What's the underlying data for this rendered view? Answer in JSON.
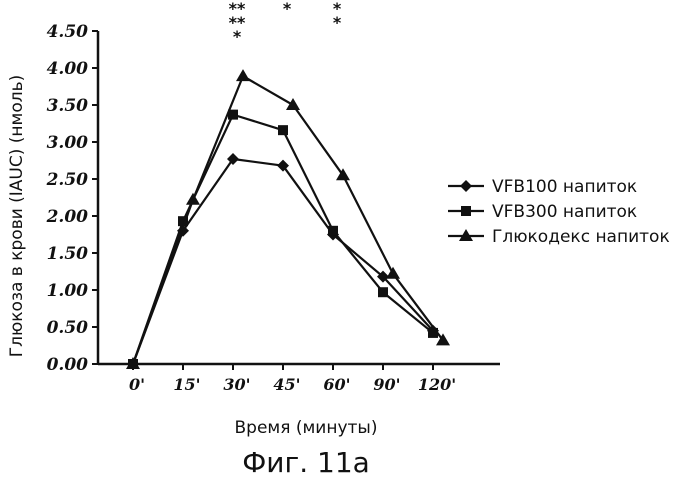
{
  "chart_data": {
    "type": "line",
    "caption": "Фиг. 11а",
    "xlabel": "Время (минуты)",
    "ylabel": "Глюкоза в крови (IAUC) (нмоль)",
    "ylim": [
      0,
      4.5
    ],
    "yticks": [
      "0.00",
      "0.50",
      "1.00",
      "1.50",
      "2.00",
      "2.50",
      "3.00",
      "3.50",
      "4.00",
      "4.50"
    ],
    "categories": [
      "0'",
      "15'",
      "30'",
      "45'",
      "60'",
      "90'",
      "120'"
    ],
    "legend_position": "right",
    "series": [
      {
        "name": "VFB100 напиток",
        "marker": "diamond",
        "x": [
          0,
          1,
          2,
          3,
          4,
          5,
          6
        ],
        "values": [
          0,
          1.8,
          2.77,
          2.68,
          1.75,
          1.18,
          0.45
        ]
      },
      {
        "name": "VFB300 напиток",
        "marker": "square",
        "x": [
          0,
          1,
          2,
          3,
          4,
          5,
          6
        ],
        "values": [
          0,
          1.93,
          3.37,
          3.16,
          1.8,
          0.97,
          0.42
        ]
      },
      {
        "name": "Глюкодекс напиток",
        "marker": "triangle",
        "x": [
          0,
          1.2,
          2.2,
          3.2,
          4.2,
          5.2,
          6.2
        ],
        "values": [
          0,
          2.22,
          3.89,
          3.5,
          2.55,
          1.22,
          0.32
        ]
      }
    ],
    "significance": [
      {
        "category": "30'",
        "mark": "**\n**\n*"
      },
      {
        "category": "45'",
        "mark": "*"
      },
      {
        "category": "60'",
        "mark": "*\n*"
      }
    ]
  }
}
